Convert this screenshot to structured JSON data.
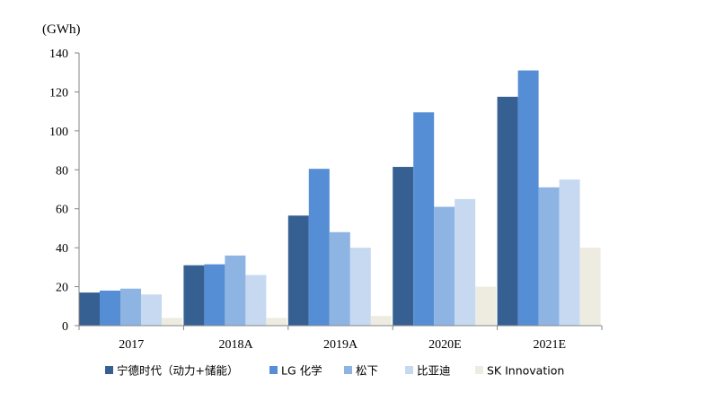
{
  "chart_data": {
    "type": "bar",
    "unit_label": "(GWh)",
    "categories": [
      "2017",
      "2018A",
      "2019A",
      "2020E",
      "2021E"
    ],
    "ylim": [
      0,
      140
    ],
    "yticks": [
      "0",
      "20",
      "40",
      "60",
      "80",
      "100",
      "120",
      "140"
    ],
    "ytick_values": [
      0,
      20,
      40,
      60,
      80,
      100,
      120,
      140
    ],
    "grid": false,
    "legend_position": "bottom",
    "series": [
      {
        "name": "宁德时代（动力+储能）",
        "color": "#376092",
        "values": [
          17,
          31,
          56.5,
          81.5,
          117.5
        ]
      },
      {
        "name": "LG 化学",
        "color": "#558ED5",
        "values": [
          18,
          31.5,
          80.5,
          109.5,
          131
        ]
      },
      {
        "name": "松下",
        "color": "#8EB4E3",
        "values": [
          19,
          36,
          48,
          61,
          71
        ]
      },
      {
        "name": "比亚迪",
        "color": "#C6D9F1",
        "values": [
          16,
          26,
          40,
          65,
          75
        ]
      },
      {
        "name": "SK Innovation",
        "color": "#EEECE1",
        "values": [
          4,
          4,
          5,
          20,
          40
        ]
      }
    ]
  }
}
